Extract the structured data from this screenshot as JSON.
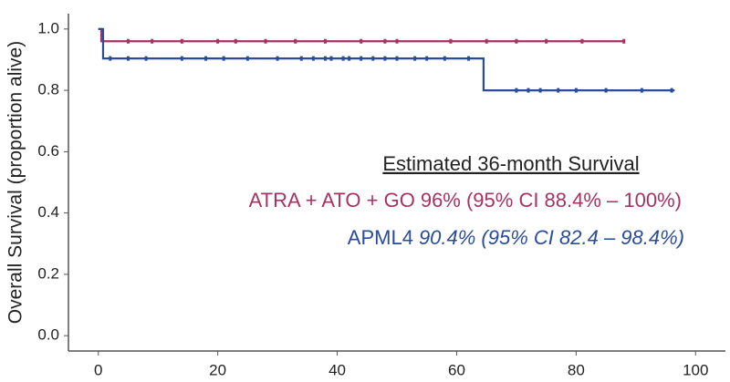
{
  "chart_data": {
    "type": "step",
    "y_label": "Overall Survival (proportion alive)",
    "xlim": [
      -5,
      105
    ],
    "ylim": [
      -0.05,
      1.05
    ],
    "xticks": [
      0,
      20,
      40,
      60,
      80,
      100
    ],
    "yticks": [
      {
        "value": 0,
        "label": "0.0"
      },
      {
        "value": 0.2,
        "label": "0.2"
      },
      {
        "value": 0.4,
        "label": "0.4"
      },
      {
        "value": 0.6,
        "label": "0.6"
      },
      {
        "value": 0.8,
        "label": "0.8"
      },
      {
        "value": 1.0,
        "label": "1.0"
      }
    ],
    "series": [
      {
        "name": "ATRA + ATO + GO",
        "color": "#a83261",
        "x": [
          0,
          0.5,
          88
        ],
        "values": [
          1.0,
          0.96,
          0.96
        ],
        "censored_x": [
          5,
          9,
          14,
          20,
          23,
          28,
          33,
          38,
          44,
          48,
          50,
          59,
          65,
          70,
          75,
          81,
          88
        ],
        "estimate": "96% (95% CI 88.4% – 100%)"
      },
      {
        "name": "APML4",
        "color": "#2a4c9c",
        "x": [
          0,
          0.8,
          64.5,
          96.5
        ],
        "values": [
          1.0,
          0.904,
          0.8,
          0.8
        ],
        "censored_x": [
          2,
          5,
          8,
          14,
          18,
          21,
          25,
          30,
          34,
          36,
          38,
          39,
          41,
          42,
          44,
          46,
          48,
          50,
          53,
          55,
          58,
          62,
          70,
          72,
          74,
          77,
          80,
          85,
          91,
          96
        ],
        "estimate": "90.4% (95% CI 82.4 – 98.4%)"
      }
    ],
    "annotation_title": "Estimated 36-month Survival"
  }
}
